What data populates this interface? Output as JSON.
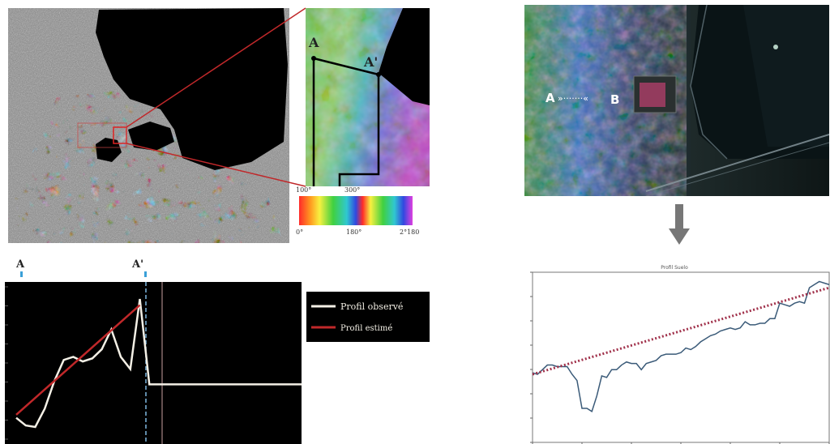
{
  "left_panel": {
    "inset_labels": {
      "start": "A",
      "end": "A'"
    },
    "color_scale": {
      "top_labels": [
        "100°",
        "300°"
      ],
      "bottom_labels": [
        "0°",
        "180°",
        "2°180"
      ]
    },
    "profile_labels": {
      "start": "A",
      "end": "A'"
    },
    "legend": {
      "observed": "Profil observé",
      "estimated": "Profil estimé"
    }
  },
  "right_panel": {
    "transect_labels": {
      "start": "A",
      "arrow": "»·······«",
      "end": "B"
    },
    "chart_title": "Profil Suelo"
  },
  "colors": {
    "observed_profile": "#f4f0e6",
    "estimated_profile": "#c0282a",
    "right_observed": "#3a5a78",
    "right_estimated": "#a0304a"
  },
  "chart_data": [
    {
      "type": "line",
      "series": [
        {
          "name": "Profil observé",
          "x": [
            0,
            1,
            2,
            3,
            4,
            5,
            6,
            7,
            8,
            9,
            10,
            11,
            12,
            13,
            14,
            15,
            16,
            17,
            18,
            19,
            20,
            21,
            22,
            23,
            24,
            25,
            26,
            27,
            28,
            29,
            30
          ],
          "values": [
            14,
            9,
            8,
            20,
            38,
            52,
            54,
            51,
            53,
            59,
            72,
            54,
            46,
            92,
            36,
            36,
            36,
            36,
            36,
            36,
            36,
            36,
            36,
            36,
            36,
            36,
            36,
            36,
            36,
            36,
            36
          ]
        },
        {
          "name": "Profil estimé",
          "x": [
            0,
            13
          ],
          "values": [
            16,
            88
          ]
        }
      ]
    },
    {
      "type": "line",
      "title": "Profil Suelo",
      "series": [
        {
          "x": [
            0,
            1,
            2,
            3,
            4,
            5,
            6,
            7,
            8,
            9,
            10,
            11,
            12,
            13,
            14,
            15,
            16,
            17,
            18,
            19,
            20,
            21,
            22,
            23,
            24,
            25,
            26,
            27,
            28,
            29,
            30,
            31,
            32,
            33,
            34,
            35,
            36,
            37,
            38,
            39,
            40,
            41,
            42,
            43,
            44,
            45,
            46,
            47,
            48,
            49,
            50,
            51,
            52,
            53,
            54,
            55,
            56,
            57,
            58,
            59,
            60
          ],
          "values": [
            45,
            44,
            47,
            50,
            50,
            49,
            49,
            49,
            44,
            40,
            22,
            22,
            20,
            30,
            43,
            42,
            47,
            47,
            50,
            52,
            51,
            51,
            47,
            51,
            52,
            53,
            56,
            57,
            57,
            57,
            58,
            61,
            60,
            62,
            65,
            67,
            69,
            70,
            72,
            73,
            74,
            73,
            74,
            78,
            76,
            76,
            77,
            77,
            80,
            80,
            90,
            89,
            88,
            90,
            91,
            90,
            100,
            102,
            104,
            103,
            102
          ]
        },
        {
          "x": [
            0,
            60
          ],
          "values": [
            44,
            100
          ]
        }
      ]
    }
  ]
}
